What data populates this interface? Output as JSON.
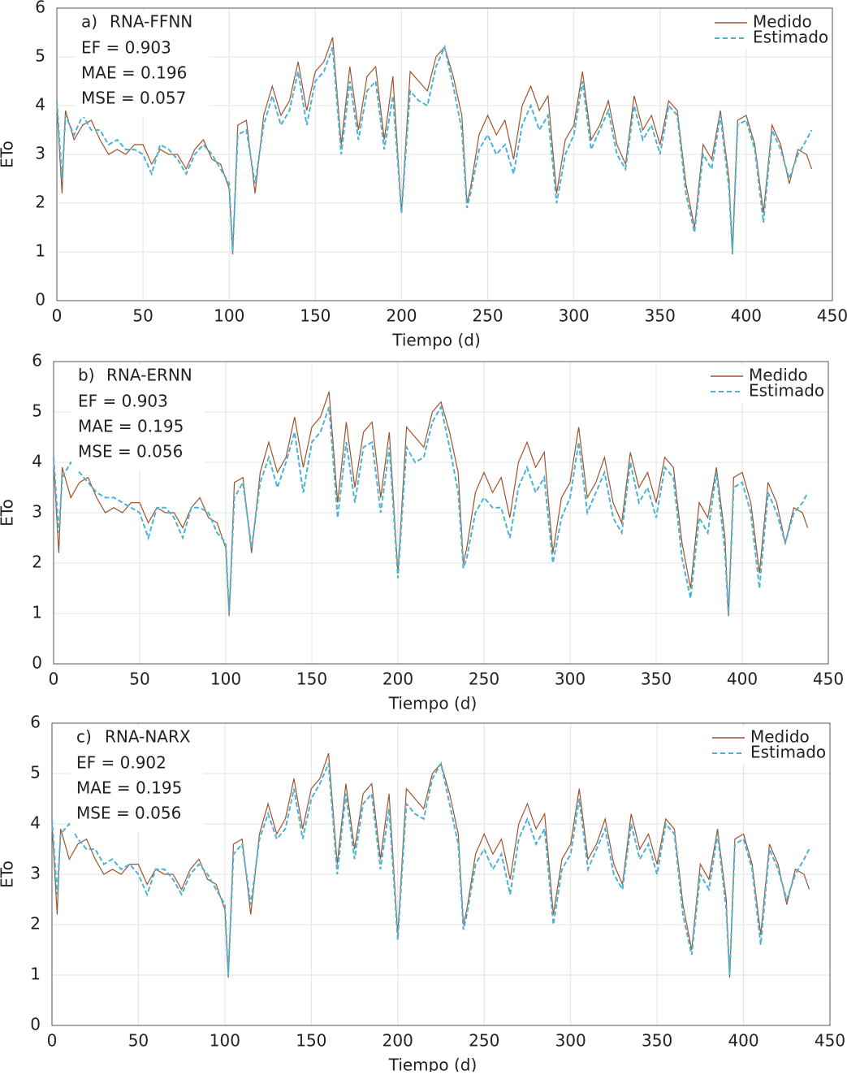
{
  "chart_data": [
    {
      "type": "line",
      "panel_label": "a)",
      "model": "RNA-FFNN",
      "metrics": [
        "EF = 0.903",
        "MAE = 0.196",
        "MSE = 0.057"
      ],
      "x_label": "Tiempo  (d)",
      "y_label": "ETo",
      "xlim": [
        0,
        450
      ],
      "ylim": [
        0,
        6
      ],
      "xticks": [
        0,
        50,
        100,
        150,
        200,
        250,
        300,
        350,
        400,
        450
      ],
      "yticks": [
        0,
        1,
        2,
        3,
        4,
        5,
        6
      ],
      "grid": true,
      "legend": "upper right",
      "x": [
        0,
        3,
        5,
        10,
        15,
        20,
        25,
        30,
        35,
        40,
        45,
        50,
        55,
        60,
        65,
        70,
        75,
        80,
        85,
        90,
        95,
        100,
        102,
        105,
        110,
        115,
        120,
        125,
        130,
        135,
        140,
        145,
        150,
        155,
        160,
        165,
        170,
        175,
        180,
        185,
        190,
        195,
        200,
        205,
        210,
        215,
        220,
        225,
        230,
        235,
        238,
        240,
        245,
        250,
        255,
        260,
        265,
        270,
        275,
        280,
        285,
        290,
        295,
        300,
        305,
        310,
        315,
        320,
        325,
        330,
        335,
        340,
        345,
        350,
        355,
        360,
        365,
        370,
        375,
        380,
        385,
        390,
        392,
        395,
        400,
        405,
        410,
        415,
        420,
        425,
        430,
        435,
        438
      ],
      "series": [
        {
          "name": "Medido",
          "color": "#a0522d",
          "dashed": false,
          "values": [
            4.0,
            2.2,
            3.9,
            3.3,
            3.6,
            3.7,
            3.3,
            3.0,
            3.1,
            3.0,
            3.2,
            3.2,
            2.8,
            3.1,
            3.0,
            3.0,
            2.7,
            3.1,
            3.3,
            2.9,
            2.8,
            2.3,
            0.95,
            3.6,
            3.7,
            2.2,
            3.8,
            4.4,
            3.8,
            4.1,
            4.9,
            3.9,
            4.7,
            4.9,
            5.4,
            3.2,
            4.8,
            3.5,
            4.6,
            4.8,
            3.3,
            4.6,
            1.8,
            4.7,
            4.5,
            4.3,
            5.0,
            5.2,
            4.6,
            3.8,
            2.0,
            2.3,
            3.4,
            3.8,
            3.4,
            3.7,
            2.9,
            4.0,
            4.4,
            3.9,
            4.2,
            2.2,
            3.3,
            3.6,
            4.7,
            3.3,
            3.6,
            4.1,
            3.2,
            2.8,
            4.2,
            3.5,
            3.8,
            3.2,
            4.1,
            3.9,
            2.4,
            1.5,
            3.2,
            2.9,
            3.9,
            2.5,
            0.95,
            3.7,
            3.8,
            3.2,
            1.8,
            3.6,
            3.2,
            2.4,
            3.1,
            3.0,
            2.7
          ]
        },
        {
          "name": "Estimado",
          "color": "#4bb3d3",
          "dashed": true,
          "values": [
            4.1,
            2.5,
            3.8,
            3.4,
            3.8,
            3.5,
            3.5,
            3.2,
            3.3,
            3.1,
            3.1,
            3.0,
            2.6,
            3.2,
            3.1,
            2.9,
            2.6,
            3.0,
            3.2,
            3.0,
            2.7,
            2.4,
            1.0,
            3.4,
            3.5,
            2.4,
            3.6,
            4.2,
            3.6,
            3.9,
            4.7,
            3.6,
            4.5,
            4.7,
            5.2,
            3.0,
            4.5,
            3.3,
            4.3,
            4.5,
            3.1,
            4.2,
            1.8,
            4.3,
            4.1,
            4.0,
            4.8,
            5.2,
            4.4,
            3.5,
            1.9,
            2.2,
            3.1,
            3.4,
            3.0,
            3.2,
            2.6,
            3.6,
            4.0,
            3.5,
            3.8,
            2.0,
            3.0,
            3.4,
            4.5,
            3.1,
            3.5,
            3.9,
            3.0,
            2.7,
            4.0,
            3.3,
            3.6,
            3.0,
            4.0,
            3.8,
            2.2,
            1.4,
            3.0,
            2.7,
            3.8,
            2.3,
            1.0,
            3.6,
            3.7,
            3.1,
            1.6,
            3.5,
            3.1,
            2.5,
            3.0,
            3.3,
            3.5
          ]
        }
      ]
    },
    {
      "type": "line",
      "panel_label": "b)",
      "model": "RNA-ERNN",
      "metrics": [
        "EF = 0.903",
        "MAE = 0.195",
        "MSE = 0.056"
      ],
      "x_label": "Tiempo (d)",
      "y_label": "ETo",
      "xlim": [
        0,
        450
      ],
      "ylim": [
        0,
        6
      ],
      "xticks": [
        0,
        50,
        100,
        150,
        200,
        250,
        300,
        350,
        400,
        450
      ],
      "yticks": [
        0,
        1,
        2,
        3,
        4,
        5,
        6
      ],
      "grid": true,
      "legend": "upper right",
      "x": [
        0,
        3,
        5,
        10,
        15,
        20,
        25,
        30,
        35,
        40,
        45,
        50,
        55,
        60,
        65,
        70,
        75,
        80,
        85,
        90,
        95,
        100,
        102,
        105,
        110,
        115,
        120,
        125,
        130,
        135,
        140,
        145,
        150,
        155,
        160,
        165,
        170,
        175,
        180,
        185,
        190,
        195,
        200,
        205,
        210,
        215,
        220,
        225,
        230,
        235,
        238,
        240,
        245,
        250,
        255,
        260,
        265,
        270,
        275,
        280,
        285,
        290,
        295,
        300,
        305,
        310,
        315,
        320,
        325,
        330,
        335,
        340,
        345,
        350,
        355,
        360,
        365,
        370,
        375,
        380,
        385,
        390,
        392,
        395,
        400,
        405,
        410,
        415,
        420,
        425,
        430,
        435,
        438
      ],
      "series": [
        {
          "name": "Medido",
          "color": "#a0522d",
          "dashed": false,
          "values": [
            4.0,
            2.2,
            3.9,
            3.3,
            3.6,
            3.7,
            3.3,
            3.0,
            3.1,
            3.0,
            3.2,
            3.2,
            2.8,
            3.1,
            3.0,
            3.0,
            2.7,
            3.1,
            3.3,
            2.9,
            2.8,
            2.3,
            0.95,
            3.6,
            3.7,
            2.2,
            3.8,
            4.4,
            3.8,
            4.1,
            4.9,
            3.9,
            4.7,
            4.9,
            5.4,
            3.2,
            4.8,
            3.5,
            4.6,
            4.8,
            3.3,
            4.6,
            1.8,
            4.7,
            4.5,
            4.3,
            5.0,
            5.2,
            4.6,
            3.8,
            2.0,
            2.3,
            3.4,
            3.8,
            3.4,
            3.7,
            2.9,
            4.0,
            4.4,
            3.9,
            4.2,
            2.2,
            3.3,
            3.6,
            4.7,
            3.3,
            3.6,
            4.1,
            3.2,
            2.8,
            4.2,
            3.5,
            3.8,
            3.2,
            4.1,
            3.9,
            2.4,
            1.5,
            3.2,
            2.9,
            3.9,
            2.5,
            0.95,
            3.7,
            3.8,
            3.2,
            1.8,
            3.6,
            3.2,
            2.4,
            3.1,
            3.0,
            2.7
          ]
        },
        {
          "name": "Estimado",
          "color": "#4bb3d3",
          "dashed": true,
          "values": [
            4.1,
            2.6,
            3.7,
            4.0,
            3.8,
            3.6,
            3.4,
            3.3,
            3.3,
            3.2,
            3.1,
            3.0,
            2.5,
            3.1,
            3.1,
            2.9,
            2.5,
            3.1,
            3.1,
            3.0,
            2.6,
            2.4,
            1.0,
            3.3,
            3.6,
            2.3,
            3.6,
            4.1,
            3.5,
            4.0,
            4.6,
            3.4,
            4.4,
            4.6,
            5.1,
            2.9,
            4.4,
            3.2,
            4.3,
            4.4,
            3.0,
            4.3,
            1.7,
            4.3,
            4.0,
            4.1,
            4.8,
            5.1,
            4.3,
            3.4,
            1.9,
            2.1,
            3.0,
            3.3,
            3.1,
            3.1,
            2.5,
            3.5,
            3.9,
            3.4,
            3.7,
            2.0,
            2.9,
            3.3,
            4.4,
            3.0,
            3.4,
            3.8,
            2.9,
            2.6,
            4.0,
            3.2,
            3.5,
            2.9,
            3.9,
            3.7,
            2.1,
            1.3,
            2.9,
            2.6,
            3.8,
            2.2,
            0.95,
            3.5,
            3.6,
            3.0,
            1.5,
            3.4,
            3.0,
            2.4,
            3.0,
            3.2,
            3.4
          ]
        }
      ]
    },
    {
      "type": "line",
      "panel_label": "c)",
      "model": "RNA-NARX",
      "metrics": [
        "EF = 0.902",
        "MAE = 0.195",
        "MSE = 0.056"
      ],
      "x_label": "Tiempo (d)",
      "y_label": "ETo",
      "xlim": [
        0,
        450
      ],
      "ylim": [
        0,
        6
      ],
      "xticks": [
        0,
        50,
        100,
        150,
        200,
        250,
        300,
        350,
        400,
        450
      ],
      "yticks": [
        0,
        1,
        2,
        3,
        4,
        5,
        6
      ],
      "grid": true,
      "legend": "upper right",
      "x": [
        0,
        3,
        5,
        10,
        15,
        20,
        25,
        30,
        35,
        40,
        45,
        50,
        55,
        60,
        65,
        70,
        75,
        80,
        85,
        90,
        95,
        100,
        102,
        105,
        110,
        115,
        120,
        125,
        130,
        135,
        140,
        145,
        150,
        155,
        160,
        165,
        170,
        175,
        180,
        185,
        190,
        195,
        200,
        205,
        210,
        215,
        220,
        225,
        230,
        235,
        238,
        240,
        245,
        250,
        255,
        260,
        265,
        270,
        275,
        280,
        285,
        290,
        295,
        300,
        305,
        310,
        315,
        320,
        325,
        330,
        335,
        340,
        345,
        350,
        355,
        360,
        365,
        370,
        375,
        380,
        385,
        390,
        392,
        395,
        400,
        405,
        410,
        415,
        420,
        425,
        430,
        435,
        438
      ],
      "series": [
        {
          "name": "Medido",
          "color": "#a0522d",
          "dashed": false,
          "values": [
            4.0,
            2.2,
            3.9,
            3.3,
            3.6,
            3.7,
            3.3,
            3.0,
            3.1,
            3.0,
            3.2,
            3.2,
            2.8,
            3.1,
            3.0,
            3.0,
            2.7,
            3.1,
            3.3,
            2.9,
            2.8,
            2.3,
            0.95,
            3.6,
            3.7,
            2.2,
            3.8,
            4.4,
            3.8,
            4.1,
            4.9,
            3.9,
            4.7,
            4.9,
            5.4,
            3.2,
            4.8,
            3.5,
            4.6,
            4.8,
            3.3,
            4.6,
            1.8,
            4.7,
            4.5,
            4.3,
            5.0,
            5.2,
            4.6,
            3.8,
            2.0,
            2.3,
            3.4,
            3.8,
            3.4,
            3.7,
            2.9,
            4.0,
            4.4,
            3.9,
            4.2,
            2.2,
            3.3,
            3.6,
            4.7,
            3.3,
            3.6,
            4.1,
            3.2,
            2.8,
            4.2,
            3.5,
            3.8,
            3.2,
            4.1,
            3.9,
            2.4,
            1.5,
            3.2,
            2.9,
            3.9,
            2.5,
            0.95,
            3.7,
            3.8,
            3.2,
            1.8,
            3.6,
            3.2,
            2.4,
            3.1,
            3.0,
            2.7
          ]
        },
        {
          "name": "Estimado",
          "color": "#4bb3d3",
          "dashed": true,
          "values": [
            4.1,
            2.6,
            3.8,
            4.0,
            3.7,
            3.5,
            3.5,
            3.2,
            3.3,
            3.1,
            3.2,
            3.0,
            2.6,
            3.1,
            3.1,
            2.9,
            2.6,
            3.0,
            3.2,
            3.0,
            2.7,
            2.4,
            1.0,
            3.4,
            3.6,
            2.4,
            3.7,
            4.2,
            3.7,
            3.9,
            4.7,
            3.7,
            4.5,
            4.8,
            5.2,
            3.0,
            4.6,
            3.3,
            4.4,
            4.6,
            3.1,
            4.3,
            1.7,
            4.4,
            4.2,
            4.1,
            4.9,
            5.2,
            4.4,
            3.6,
            1.9,
            2.2,
            3.2,
            3.5,
            3.1,
            3.4,
            2.6,
            3.7,
            4.1,
            3.6,
            3.9,
            2.0,
            3.1,
            3.4,
            4.5,
            3.1,
            3.5,
            3.9,
            3.0,
            2.7,
            4.0,
            3.3,
            3.6,
            3.0,
            4.0,
            3.8,
            2.2,
            1.4,
            3.0,
            2.7,
            3.8,
            2.3,
            1.0,
            3.6,
            3.7,
            3.1,
            1.6,
            3.5,
            3.1,
            2.5,
            3.0,
            3.3,
            3.5
          ]
        }
      ]
    }
  ]
}
